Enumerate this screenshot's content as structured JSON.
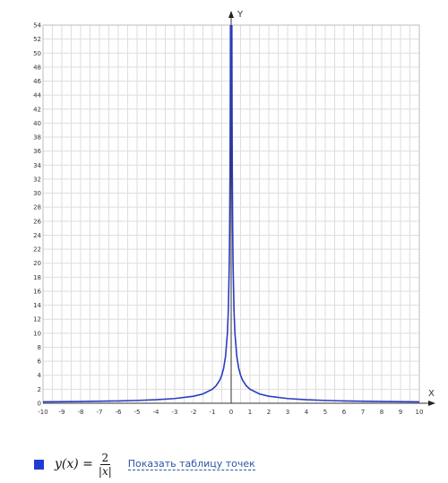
{
  "chart_data": {
    "type": "line",
    "function": "2/|x|",
    "xlim": [
      -10,
      10
    ],
    "ylim": [
      0,
      54
    ],
    "xlabel": "X",
    "ylabel": "Y",
    "xticks": [
      "-10",
      "-9",
      "-8",
      "-7",
      "-6",
      "-5",
      "-4",
      "-3",
      "-2",
      "-1",
      "0",
      "1",
      "2",
      "3",
      "4",
      "5",
      "6",
      "7",
      "8",
      "9",
      "10"
    ],
    "yticks": [
      "0",
      "2",
      "4",
      "6",
      "8",
      "10",
      "12",
      "14",
      "16",
      "18",
      "20",
      "22",
      "24",
      "26",
      "28",
      "30",
      "32",
      "34",
      "36",
      "38",
      "40",
      "42",
      "44",
      "46",
      "48",
      "50",
      "52",
      "54"
    ],
    "grid": true,
    "series": [
      {
        "name": "y(x) = 2/|x|",
        "color": "#2b3cbf",
        "x": [
          -10,
          -8,
          -6,
          -5,
          -4,
          -3,
          -2,
          -1.5,
          -1,
          -0.8,
          -0.6,
          -0.5,
          -0.4,
          -0.3,
          -0.2,
          -0.15,
          -0.1,
          -0.08,
          -0.06,
          -0.05,
          -0.04,
          -0.037,
          0.037,
          0.04,
          0.05,
          0.06,
          0.08,
          0.1,
          0.15,
          0.2,
          0.3,
          0.4,
          0.5,
          0.6,
          0.8,
          1,
          1.5,
          2,
          3,
          4,
          5,
          6,
          8,
          10
        ],
        "y": [
          0.2,
          0.25,
          0.33,
          0.4,
          0.5,
          0.67,
          1,
          1.33,
          2,
          2.5,
          3.33,
          4,
          5,
          6.67,
          10,
          13.33,
          20,
          25,
          33.33,
          40,
          50,
          54,
          54,
          50,
          40,
          33.33,
          25,
          20,
          13.33,
          10,
          6.67,
          5,
          4,
          3.33,
          2.5,
          2,
          1.33,
          1,
          0.67,
          0.5,
          0.4,
          0.33,
          0.25,
          0.2
        ]
      }
    ]
  },
  "legend": {
    "swatch_color": "#1f3bd6",
    "formula_lhs": "y(x) =",
    "formula_num": "2",
    "formula_den": "|x|",
    "table_link": "Показать таблицу точек"
  }
}
